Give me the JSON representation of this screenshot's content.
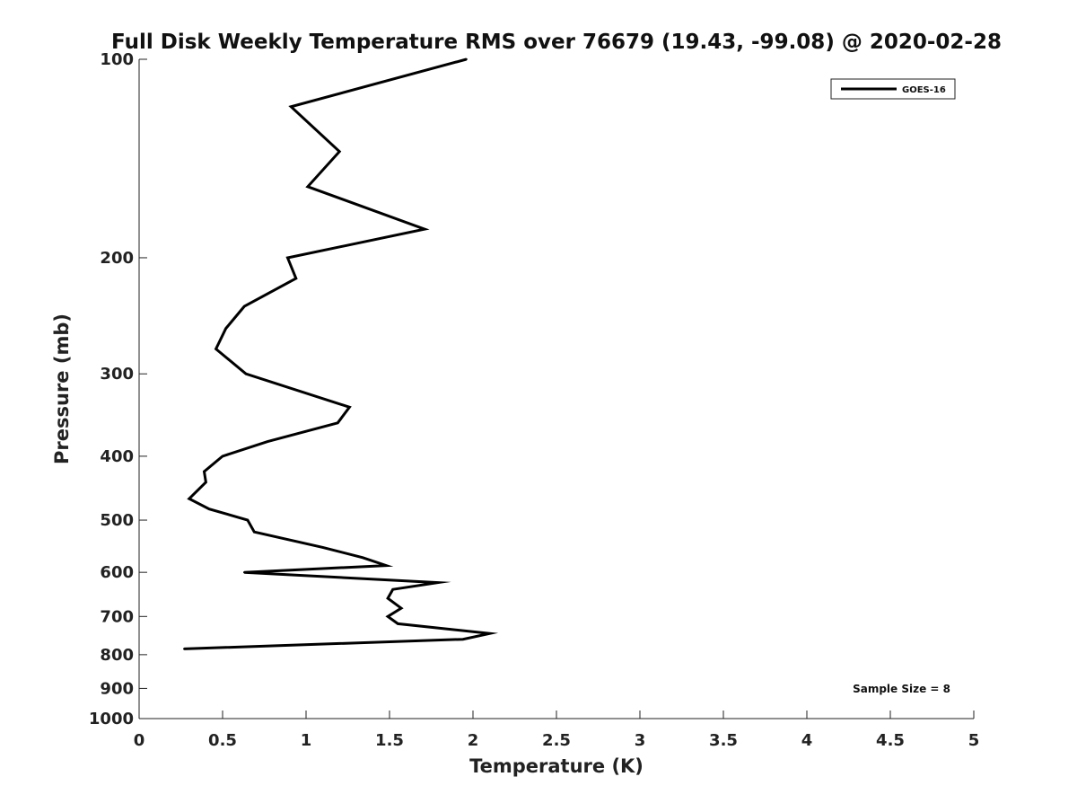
{
  "chart_data": {
    "type": "line",
    "title": "Full Disk Weekly Temperature RMS over 76679 (19.43, -99.08) @ 2020-02-28",
    "xlabel": "Temperature (K)",
    "ylabel": "Pressure (mb)",
    "xlim": [
      0,
      5
    ],
    "ylim": [
      100,
      1000
    ],
    "y_scale": "log",
    "y_reversed": true,
    "x_ticks": [
      0,
      0.5,
      1,
      1.5,
      2,
      2.5,
      3,
      3.5,
      4,
      4.5,
      5
    ],
    "x_tick_labels": [
      "0",
      "0.5",
      "1",
      "1.5",
      "2",
      "2.5",
      "3",
      "3.5",
      "4",
      "4.5",
      "5"
    ],
    "y_ticks": [
      100,
      200,
      300,
      400,
      500,
      600,
      700,
      800,
      900,
      1000
    ],
    "y_tick_labels": [
      "100",
      "200",
      "300",
      "400",
      "500",
      "600",
      "700",
      "800",
      "900",
      "1000"
    ],
    "grid": false,
    "legend_position": "top-right",
    "series_color": "#000000",
    "series": [
      {
        "name": "GOES-16",
        "points": [
          {
            "x": 1.96,
            "y": 100
          },
          {
            "x": 0.91,
            "y": 118
          },
          {
            "x": 1.2,
            "y": 138
          },
          {
            "x": 1.01,
            "y": 156
          },
          {
            "x": 1.71,
            "y": 181
          },
          {
            "x": 0.89,
            "y": 200
          },
          {
            "x": 0.94,
            "y": 215
          },
          {
            "x": 0.63,
            "y": 237
          },
          {
            "x": 0.52,
            "y": 256
          },
          {
            "x": 0.46,
            "y": 275
          },
          {
            "x": 0.64,
            "y": 300
          },
          {
            "x": 1.26,
            "y": 337
          },
          {
            "x": 1.19,
            "y": 356
          },
          {
            "x": 0.77,
            "y": 380
          },
          {
            "x": 0.5,
            "y": 400
          },
          {
            "x": 0.39,
            "y": 422
          },
          {
            "x": 0.4,
            "y": 438
          },
          {
            "x": 0.3,
            "y": 464
          },
          {
            "x": 0.42,
            "y": 481
          },
          {
            "x": 0.65,
            "y": 500
          },
          {
            "x": 0.69,
            "y": 521
          },
          {
            "x": 1.1,
            "y": 550
          },
          {
            "x": 1.34,
            "y": 570
          },
          {
            "x": 1.48,
            "y": 586
          },
          {
            "x": 0.63,
            "y": 600
          },
          {
            "x": 1.79,
            "y": 622
          },
          {
            "x": 1.52,
            "y": 637
          },
          {
            "x": 1.49,
            "y": 657
          },
          {
            "x": 1.57,
            "y": 680
          },
          {
            "x": 1.49,
            "y": 700
          },
          {
            "x": 1.55,
            "y": 718
          },
          {
            "x": 2.1,
            "y": 743
          },
          {
            "x": 1.94,
            "y": 758
          },
          {
            "x": 0.27,
            "y": 784
          }
        ]
      }
    ],
    "annotations": [
      {
        "text": "Sample Size = 8",
        "position": "bottom-right"
      }
    ]
  }
}
